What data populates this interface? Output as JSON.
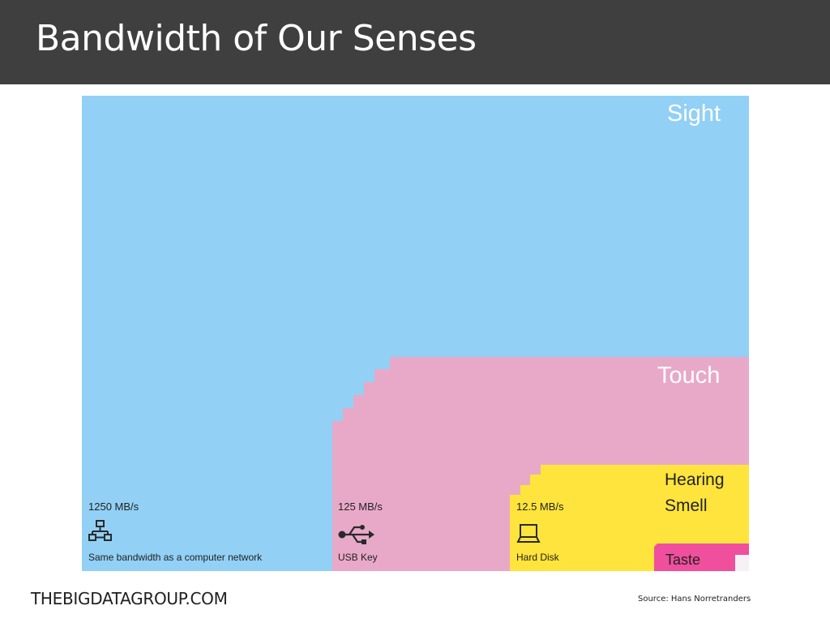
{
  "slide": {
    "title": "Bandwidth of Our Senses",
    "footer_site": "THEBIGDATAGROUP.COM",
    "source": "Source: Hans Norretranders"
  },
  "diagram": {
    "colors": {
      "sight": "#92d0f5",
      "touch": "#e8a9c8",
      "hearing_smell": "#fee43c",
      "taste": "#f04f9d"
    },
    "senses": {
      "sight": "Sight",
      "touch": "Touch",
      "hearing": "Hearing",
      "smell": "Smell",
      "taste": "Taste"
    },
    "comparisons": [
      {
        "rate": "1250 MB/s",
        "caption": "Same bandwidth as a computer network",
        "icon": "network-icon"
      },
      {
        "rate": "125 MB/s",
        "caption": "USB Key",
        "icon": "usb-icon"
      },
      {
        "rate": "12.5 MB/s",
        "caption": "Hard Disk",
        "icon": "laptop-icon"
      }
    ]
  }
}
